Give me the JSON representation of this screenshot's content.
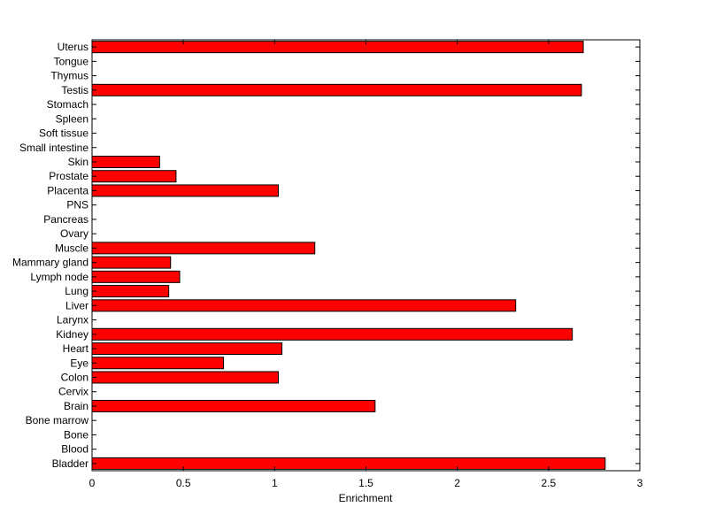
{
  "chart_data": {
    "type": "bar",
    "orientation": "horizontal",
    "xlabel": "Enrichment",
    "ylabel": "",
    "xlim": [
      0,
      3
    ],
    "xticks": [
      0,
      0.5,
      1,
      1.5,
      2,
      2.5,
      3
    ],
    "xtick_labels": [
      "0",
      "0.5",
      "1",
      "1.5",
      "2",
      "2.5",
      "3"
    ],
    "grid": false,
    "bar_color": "#ff0000",
    "categories": [
      "Bladder",
      "Blood",
      "Bone",
      "Bone marrow",
      "Brain",
      "Cervix",
      "Colon",
      "Eye",
      "Heart",
      "Kidney",
      "Larynx",
      "Liver",
      "Lung",
      "Lymph node",
      "Mammary gland",
      "Muscle",
      "Ovary",
      "Pancreas",
      "PNS",
      "Placenta",
      "Prostate",
      "Skin",
      "Small intestine",
      "Soft tissue",
      "Spleen",
      "Stomach",
      "Testis",
      "Thymus",
      "Tongue",
      "Uterus"
    ],
    "values": [
      2.81,
      0,
      0,
      0,
      1.55,
      0,
      1.02,
      0.72,
      1.04,
      2.63,
      0,
      2.32,
      0.42,
      0.48,
      0.43,
      1.22,
      0,
      0,
      0,
      1.02,
      0.46,
      0.37,
      0,
      0,
      0,
      0,
      2.68,
      0,
      0,
      2.69
    ]
  }
}
